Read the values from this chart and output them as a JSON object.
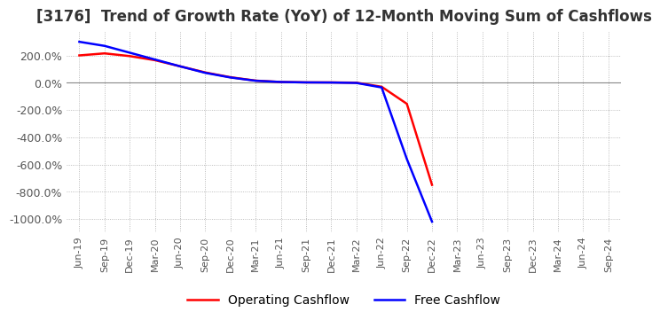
{
  "title": "[3176]  Trend of Growth Rate (YoY) of 12-Month Moving Sum of Cashflows",
  "title_fontsize": 12,
  "background_color": "#ffffff",
  "grid_color": "#aaaaaa",
  "ylim": [
    -1100,
    380
  ],
  "yticks": [
    200,
    0,
    -200,
    -400,
    -600,
    -800,
    -1000
  ],
  "x_labels": [
    "Jun-19",
    "Sep-19",
    "Dec-19",
    "Mar-20",
    "Jun-20",
    "Sep-20",
    "Dec-20",
    "Mar-21",
    "Jun-21",
    "Sep-21",
    "Dec-21",
    "Mar-22",
    "Jun-22",
    "Sep-22",
    "Dec-22",
    "Mar-23",
    "Jun-23",
    "Sep-23",
    "Dec-23",
    "Mar-24",
    "Jun-24",
    "Sep-24"
  ],
  "operating_cashflow": [
    200,
    215,
    195,
    165,
    120,
    75,
    40,
    15,
    5,
    2,
    2,
    0,
    -30,
    -155,
    -750,
    null,
    null,
    null,
    null,
    null,
    null,
    null
  ],
  "free_cashflow": [
    300,
    270,
    220,
    170,
    120,
    72,
    38,
    14,
    5,
    2,
    1,
    -2,
    -35,
    -560,
    -1020,
    null,
    null,
    null,
    null,
    null,
    null,
    null
  ],
  "op_color": "#ff0000",
  "fc_color": "#0000ff",
  "line_width": 1.8,
  "legend_labels": [
    "Operating Cashflow",
    "Free Cashflow"
  ]
}
